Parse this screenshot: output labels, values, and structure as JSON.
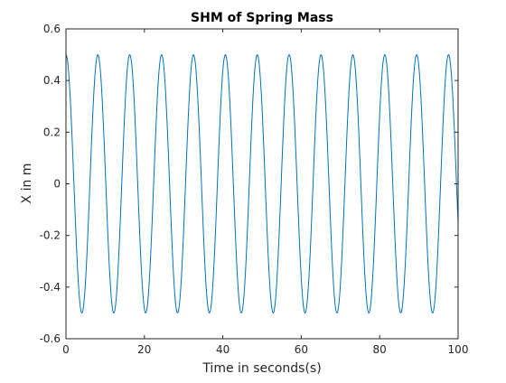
{
  "chart_data": {
    "type": "line",
    "title": "SHM of Spring Mass",
    "xlabel": "Time in seconds(s)",
    "ylabel": "X in m",
    "xlim": [
      0,
      100
    ],
    "ylim": [
      -0.6,
      0.6
    ],
    "xticks": [
      0,
      20,
      40,
      60,
      80,
      100
    ],
    "xtick_labels": [
      "0",
      "20",
      "40",
      "60",
      "80",
      "100"
    ],
    "yticks": [
      0.6,
      0.4,
      0.2,
      0,
      -0.2,
      -0.4,
      -0.6
    ],
    "ytick_labels": [
      "0.6",
      "0.4",
      "0.2",
      "0",
      "-0.2",
      "-0.4",
      "-0.6"
    ],
    "grid": false,
    "legend": "none",
    "series": [
      {
        "color": "#0072BD",
        "amplitude": 0.5,
        "period": 8.13,
        "phase": "cosine",
        "x_range": [
          0,
          100
        ],
        "x": [
          0,
          2.03,
          4.07,
          6.1,
          8.13,
          12.2,
          16.26,
          20.33,
          24.39,
          28.46,
          32.52,
          36.59,
          40.65,
          44.72,
          48.78,
          52.85,
          56.91,
          60.98,
          65.04,
          69.11,
          73.17,
          77.24,
          81.3,
          85.37,
          89.43,
          93.5,
          97.56,
          100
        ],
        "y": [
          0.5,
          0,
          -0.5,
          0,
          0.5,
          -0.5,
          0.5,
          -0.5,
          0.5,
          -0.5,
          0.5,
          -0.5,
          0.5,
          -0.5,
          0.5,
          -0.5,
          0.5,
          -0.5,
          0.5,
          -0.5,
          0.5,
          -0.5,
          0.5,
          -0.5,
          0.5,
          -0.5,
          0.5,
          -0.15
        ]
      }
    ]
  }
}
